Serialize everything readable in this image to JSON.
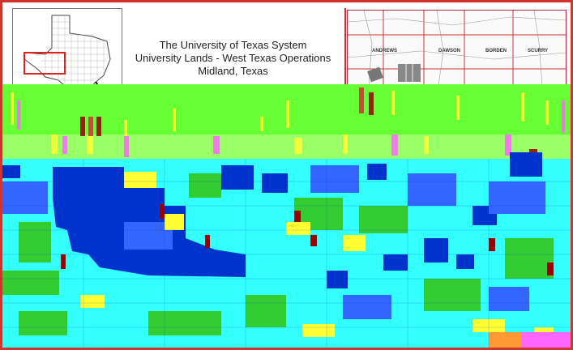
{
  "header": {
    "title_line1": "The University of Texas System",
    "title_line2": "University Lands - West Texas Operations",
    "title_line3": "Midland, Texas"
  },
  "locator_map": {
    "county_labels": [
      "ANDREWS",
      "DAWSON",
      "BORDEN",
      "SCURRY"
    ]
  },
  "colors": {
    "frame": "#d0342c",
    "green_band": "#66ff33",
    "cyan": "#33ffff",
    "blue": "#0033cc",
    "mid_blue": "#3366ff",
    "green": "#33cc33",
    "yellow": "#ffff33",
    "magenta": "#ff66ff",
    "dark_red": "#990000",
    "orange": "#ff9933"
  }
}
